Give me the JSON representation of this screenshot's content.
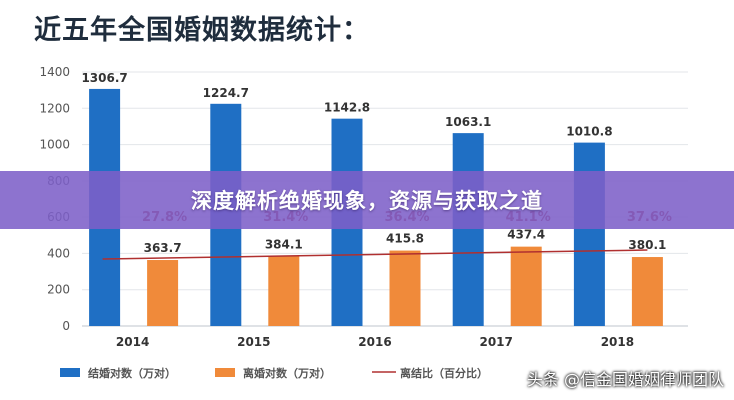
{
  "page_title": "近五年全国婚姻数据统计：",
  "banner": {
    "text": "深度解析绝婚现象，资源与获取之道"
  },
  "watermark": {
    "text": "头条 @信金国婚姻律师团队"
  },
  "colors": {
    "marriage": "#1f6fc4",
    "divorce": "#f08a3a",
    "ratio": "#b03030",
    "banner": "#7d60c8"
  },
  "chart_data": {
    "type": "bar",
    "categories": [
      "2014",
      "2015",
      "2016",
      "2017",
      "2018"
    ],
    "ylim": [
      0,
      1400
    ],
    "yticks": [
      0,
      200,
      400,
      600,
      800,
      1000,
      1200,
      1400
    ],
    "grid": true,
    "legend_position": "bottom",
    "series": [
      {
        "name": "结婚对数（万对）",
        "type": "bar",
        "color": "#1f6fc4",
        "values": [
          1306.7,
          1224.7,
          1142.8,
          1063.1,
          1010.8
        ]
      },
      {
        "name": "离婚对数（万对）",
        "type": "bar",
        "color": "#f08a3a",
        "values": [
          363.7,
          384.1,
          415.8,
          437.4,
          380.1
        ]
      },
      {
        "name": "离结比（百分比）",
        "type": "line",
        "color": "#b03030",
        "values": [
          27.8,
          31.4,
          36.4,
          41.1,
          37.6
        ],
        "labels": [
          "27.8%",
          "31.4%",
          "36.4%",
          "41.1%",
          "37.6%"
        ]
      }
    ]
  }
}
